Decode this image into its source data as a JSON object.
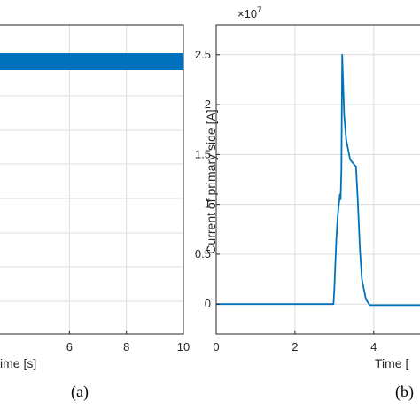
{
  "chart_data": [
    {
      "type": "line",
      "panel": "(a)",
      "title": "",
      "xlabel": "ime [s]",
      "ylabel": "",
      "x_ticks": [
        "6",
        "8",
        "10"
      ],
      "x_tick_values": [
        6,
        8,
        10
      ],
      "xlim": [
        3.5,
        10
      ],
      "grid": true,
      "series": [
        {
          "x": [
            3.5,
            10
          ],
          "y_band": [
            0.97,
            1.03
          ],
          "color": "#0072bd"
        }
      ]
    },
    {
      "type": "line",
      "panel": "(b)",
      "title": "",
      "xlabel": "Time [",
      "ylabel": "Current of primary side [A]",
      "y_multiplier": "×10",
      "y_multiplier_exp": "7",
      "y_ticks": [
        "0",
        "0.5",
        "1",
        "1.5",
        "2",
        "2.5"
      ],
      "y_tick_values": [
        0,
        0.5,
        1,
        1.5,
        2,
        2.5
      ],
      "x_ticks": [
        "0",
        "2",
        "4"
      ],
      "x_tick_values": [
        0,
        2,
        4
      ],
      "xlim": [
        0,
        5.4
      ],
      "ylim": [
        -0.3,
        2.8
      ],
      "grid": true,
      "series": [
        {
          "color": "#0072bd",
          "x": [
            0,
            2.98,
            3.0,
            3.05,
            3.08,
            3.1,
            3.12,
            3.14,
            3.16,
            3.18,
            3.2,
            3.25,
            3.3,
            3.4,
            3.5,
            3.55,
            3.6,
            3.65,
            3.7,
            3.8,
            3.9,
            4.0,
            4.3,
            4.7,
            5.4
          ],
          "y": [
            0,
            0,
            0.15,
            0.65,
            0.85,
            0.95,
            1.02,
            1.1,
            1.05,
            1.35,
            2.5,
            1.9,
            1.65,
            1.45,
            1.4,
            1.38,
            1.0,
            0.55,
            0.25,
            0.05,
            -0.01,
            -0.01,
            -0.01,
            -0.01,
            -0.01
          ]
        }
      ]
    }
  ],
  "captions": {
    "a": "(a)",
    "b": "(b)"
  }
}
